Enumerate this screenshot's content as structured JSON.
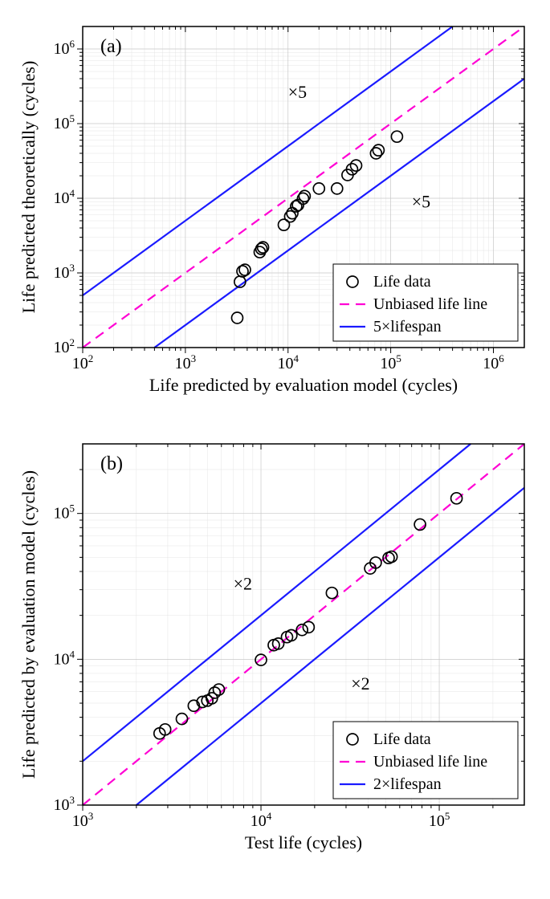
{
  "chartA": {
    "type": "scatter",
    "panel_label": "(a)",
    "xlabel": "Life predicted by evaluation model (cycles)",
    "ylabel": "Life predicted theoretically (cycles)",
    "xlim": [
      100,
      2000000
    ],
    "ylim": [
      100,
      2000000
    ],
    "xticks": [
      100,
      1000,
      10000,
      100000,
      1000000
    ],
    "yticks": [
      100,
      1000,
      10000,
      100000,
      1000000
    ],
    "xtick_labels": [
      "10²",
      "10³",
      "10⁴",
      "10⁵",
      "10⁶"
    ],
    "ytick_labels": [
      "10²",
      "10³",
      "10⁴",
      "10⁵",
      "10⁶"
    ],
    "factor": 5,
    "annotation_upper": "×5",
    "annotation_lower": "×5",
    "annotation_upper_pos": [
      10000,
      220000
    ],
    "annotation_lower_pos": [
      160000,
      7500
    ],
    "unbiased_color": "#ff00d4",
    "band_color": "#1a1aff",
    "marker_color": "#000000",
    "marker_size": 7,
    "background_color": "#ffffff",
    "grid_major_color": "#c8c8c8",
    "grid_minor_color": "#e4e4e4",
    "data": [
      [
        3200,
        250
      ],
      [
        3400,
        760
      ],
      [
        3800,
        1100
      ],
      [
        3600,
        1050
      ],
      [
        5300,
        1900
      ],
      [
        5500,
        2100
      ],
      [
        5700,
        2200
      ],
      [
        9100,
        4400
      ],
      [
        10500,
        5700
      ],
      [
        11000,
        6300
      ],
      [
        12000,
        7800
      ],
      [
        12500,
        8100
      ],
      [
        14000,
        9900
      ],
      [
        14500,
        10700
      ],
      [
        20000,
        13500
      ],
      [
        30000,
        13500
      ],
      [
        38000,
        20500
      ],
      [
        42000,
        24500
      ],
      [
        46000,
        27500
      ],
      [
        72000,
        40000
      ],
      [
        76000,
        44000
      ],
      [
        115000,
        67000
      ]
    ],
    "legend": {
      "items": [
        "Life data",
        "Unbiased life line",
        "5×lifespan"
      ],
      "position": "lower-right"
    }
  },
  "chartB": {
    "type": "scatter",
    "panel_label": "(b)",
    "xlabel": "Test life (cycles)",
    "ylabel": "Life predicted by evaluation model (cycles)",
    "xlim": [
      1000,
      300000
    ],
    "ylim": [
      1000,
      300000
    ],
    "xticks": [
      1000,
      10000,
      100000
    ],
    "yticks": [
      1000,
      10000,
      100000
    ],
    "xtick_labels": [
      "10³",
      "10⁴",
      "10⁵"
    ],
    "ytick_labels": [
      "10³",
      "10⁴",
      "10⁵"
    ],
    "factor": 2,
    "annotation_upper": "×2",
    "annotation_lower": "×2",
    "annotation_upper_pos": [
      7000,
      30000
    ],
    "annotation_lower_pos": [
      32000,
      6200
    ],
    "unbiased_color": "#ff00d4",
    "band_color": "#1a1aff",
    "marker_color": "#000000",
    "marker_size": 7,
    "background_color": "#ffffff",
    "grid_major_color": "#c8c8c8",
    "grid_minor_color": "#e4e4e4",
    "data": [
      [
        2700,
        3100
      ],
      [
        2900,
        3300
      ],
      [
        3600,
        3900
      ],
      [
        4200,
        4800
      ],
      [
        4700,
        5100
      ],
      [
        5000,
        5200
      ],
      [
        5300,
        5400
      ],
      [
        5500,
        5900
      ],
      [
        5800,
        6200
      ],
      [
        10000,
        9900
      ],
      [
        11800,
        12500
      ],
      [
        12500,
        12800
      ],
      [
        14000,
        14200
      ],
      [
        14800,
        14600
      ],
      [
        17000,
        15900
      ],
      [
        18500,
        16600
      ],
      [
        25000,
        28500
      ],
      [
        41000,
        42000
      ],
      [
        44000,
        46000
      ],
      [
        52000,
        49500
      ],
      [
        54000,
        50500
      ],
      [
        78000,
        84000
      ],
      [
        125000,
        127000
      ]
    ],
    "legend": {
      "items": [
        "Life data",
        "Unbiased life line",
        "2×lifespan"
      ],
      "position": "lower-right"
    }
  },
  "axis_label_fontsize": 22,
  "tick_label_fontsize": 20,
  "panel_label_fontsize": 24,
  "legend_fontsize": 20
}
